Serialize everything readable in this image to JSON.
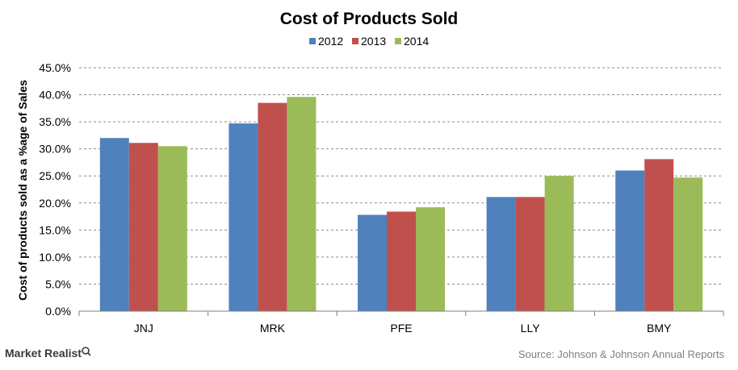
{
  "branding": {
    "logo_text": "Market Realist"
  },
  "footer": {
    "source": "Source: Johnson & Johnson Annual Reports"
  },
  "chart_data": {
    "type": "bar",
    "title": "Cost of Products Sold",
    "xlabel": "",
    "ylabel": "Cost of products sold as a %age of Sales",
    "categories": [
      "JNJ",
      "MRK",
      "PFE",
      "LLY",
      "BMY"
    ],
    "series": [
      {
        "name": "2012",
        "color": "#4f81bd",
        "values": [
          32.0,
          34.7,
          17.8,
          21.1,
          26.0
        ]
      },
      {
        "name": "2013",
        "color": "#c0504d",
        "values": [
          31.1,
          38.5,
          18.4,
          21.1,
          28.1
        ]
      },
      {
        "name": "2014",
        "color": "#9bbb59",
        "values": [
          30.5,
          39.6,
          19.2,
          25.0,
          24.7
        ]
      }
    ],
    "ylim": [
      0,
      45
    ],
    "yticks": [
      0,
      5,
      10,
      15,
      20,
      25,
      30,
      35,
      40,
      45
    ],
    "ytick_labels": [
      "0.0%",
      "5.0%",
      "10.0%",
      "15.0%",
      "20.0%",
      "25.0%",
      "30.0%",
      "35.0%",
      "40.0%",
      "45.0%"
    ],
    "grid": true,
    "legend_position": "top-center"
  }
}
